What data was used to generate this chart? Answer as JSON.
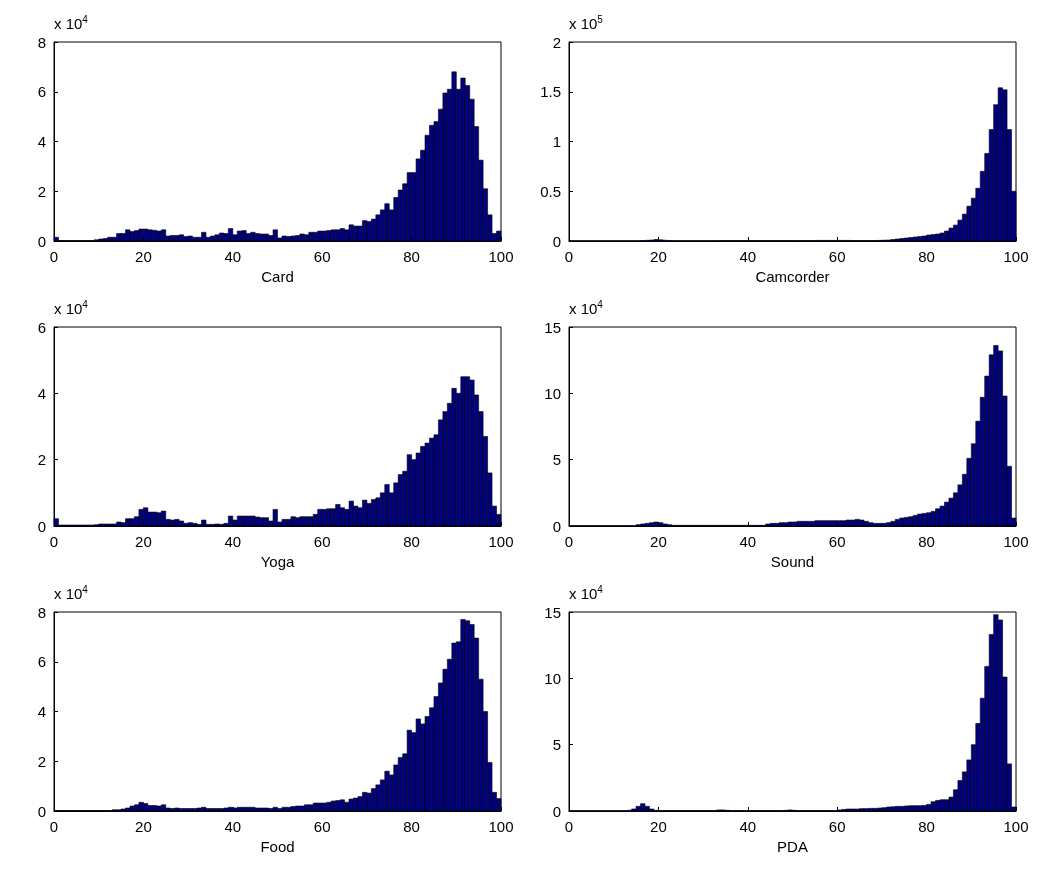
{
  "chart_data": [
    {
      "type": "histogram",
      "xlabel": "Card",
      "annotations": [
        "x 10$^{4}$"
      ],
      "color": "#000080",
      "xlim": [
        0,
        100
      ],
      "xticks": [
        0,
        20,
        40,
        60,
        80,
        100
      ],
      "ylim": [
        0,
        8
      ],
      "yticks": [
        0,
        2,
        4,
        6,
        8
      ],
      "grid": false,
      "bins": [
        0,
        1,
        2,
        3,
        4,
        5,
        6,
        7,
        8,
        9,
        10,
        11,
        12,
        13,
        14,
        15,
        16,
        17,
        18,
        19,
        20,
        21,
        22,
        23,
        24,
        25,
        26,
        27,
        28,
        29,
        30,
        31,
        32,
        33,
        34,
        35,
        36,
        37,
        38,
        39,
        40,
        41,
        42,
        43,
        44,
        45,
        46,
        47,
        48,
        49,
        50,
        51,
        52,
        53,
        54,
        55,
        56,
        57,
        58,
        59,
        60,
        61,
        62,
        63,
        64,
        65,
        66,
        67,
        68,
        69,
        70,
        71,
        72,
        73,
        74,
        75,
        76,
        77,
        78,
        79,
        80,
        81,
        82,
        83,
        84,
        85,
        86,
        87,
        88,
        89,
        90,
        91,
        92,
        93,
        94,
        95,
        96,
        97,
        98,
        99,
        100
      ],
      "values": [
        0.15,
        0.02,
        0.02,
        0.02,
        0.02,
        0.02,
        0.02,
        0.02,
        0.02,
        0.05,
        0.08,
        0.1,
        0.15,
        0.15,
        0.3,
        0.3,
        0.45,
        0.38,
        0.42,
        0.48,
        0.48,
        0.45,
        0.43,
        0.4,
        0.45,
        0.2,
        0.22,
        0.22,
        0.25,
        0.18,
        0.2,
        0.15,
        0.15,
        0.35,
        0.15,
        0.2,
        0.25,
        0.32,
        0.3,
        0.5,
        0.25,
        0.4,
        0.42,
        0.3,
        0.35,
        0.3,
        0.28,
        0.28,
        0.22,
        0.45,
        0.12,
        0.2,
        0.18,
        0.2,
        0.22,
        0.28,
        0.25,
        0.35,
        0.35,
        0.4,
        0.4,
        0.42,
        0.45,
        0.45,
        0.5,
        0.45,
        0.65,
        0.6,
        0.6,
        0.82,
        0.78,
        0.88,
        1.05,
        1.25,
        1.5,
        1.25,
        1.75,
        2.05,
        2.3,
        2.75,
        2.75,
        3.3,
        3.65,
        4.25,
        4.65,
        4.8,
        5.3,
        5.95,
        6.1,
        6.8,
        6.1,
        6.55,
        6.25,
        5.7,
        4.6,
        3.25,
        2.1,
        1.05,
        0.3,
        0.4
      ]
    },
    {
      "type": "histogram",
      "xlabel": "Camcorder",
      "annotations": [
        "x 10$^{5}$"
      ],
      "color": "#000080",
      "xlim": [
        0,
        100
      ],
      "xticks": [
        0,
        20,
        40,
        60,
        80,
        100
      ],
      "ylim": [
        0,
        2
      ],
      "yticks": [
        0,
        0.5,
        1,
        1.5,
        2
      ],
      "grid": false,
      "bins": [
        0,
        1,
        2,
        3,
        4,
        5,
        6,
        7,
        8,
        9,
        10,
        11,
        12,
        13,
        14,
        15,
        16,
        17,
        18,
        19,
        20,
        21,
        22,
        23,
        24,
        25,
        26,
        27,
        28,
        29,
        30,
        31,
        32,
        33,
        34,
        35,
        36,
        37,
        38,
        39,
        40,
        41,
        42,
        43,
        44,
        45,
        46,
        47,
        48,
        49,
        50,
        51,
        52,
        53,
        54,
        55,
        56,
        57,
        58,
        59,
        60,
        61,
        62,
        63,
        64,
        65,
        66,
        67,
        68,
        69,
        70,
        71,
        72,
        73,
        74,
        75,
        76,
        77,
        78,
        79,
        80,
        81,
        82,
        83,
        84,
        85,
        86,
        87,
        88,
        89,
        90,
        91,
        92,
        93,
        94,
        95,
        96,
        97,
        98,
        99,
        100
      ],
      "values": [
        0.002,
        0.002,
        0.002,
        0.002,
        0.002,
        0.002,
        0.002,
        0.002,
        0.002,
        0.002,
        0.002,
        0.002,
        0.002,
        0.002,
        0.002,
        0.002,
        0.005,
        0.007,
        0.01,
        0.015,
        0.012,
        0.008,
        0.005,
        0.003,
        0.003,
        0.003,
        0.003,
        0.003,
        0.003,
        0.003,
        0.003,
        0.003,
        0.003,
        0.004,
        0.004,
        0.005,
        0.005,
        0.005,
        0.005,
        0.005,
        0.005,
        0.005,
        0.005,
        0.005,
        0.005,
        0.005,
        0.005,
        0.005,
        0.005,
        0.005,
        0.004,
        0.004,
        0.004,
        0.005,
        0.005,
        0.006,
        0.006,
        0.006,
        0.006,
        0.006,
        0.006,
        0.006,
        0.006,
        0.005,
        0.005,
        0.005,
        0.005,
        0.005,
        0.005,
        0.006,
        0.008,
        0.01,
        0.015,
        0.02,
        0.025,
        0.03,
        0.035,
        0.04,
        0.045,
        0.05,
        0.06,
        0.065,
        0.07,
        0.08,
        0.1,
        0.13,
        0.16,
        0.21,
        0.27,
        0.35,
        0.43,
        0.53,
        0.7,
        0.88,
        1.12,
        1.37,
        1.54,
        1.52,
        1.12,
        0.5
      ]
    },
    {
      "type": "histogram",
      "xlabel": "Yoga",
      "annotations": [
        "x 10$^{4}$"
      ],
      "color": "#000080",
      "xlim": [
        0,
        100
      ],
      "xticks": [
        0,
        20,
        40,
        60,
        80,
        100
      ],
      "ylim": [
        0,
        6
      ],
      "yticks": [
        0,
        2,
        4,
        6
      ],
      "grid": false,
      "bins": [
        0,
        1,
        2,
        3,
        4,
        5,
        6,
        7,
        8,
        9,
        10,
        11,
        12,
        13,
        14,
        15,
        16,
        17,
        18,
        19,
        20,
        21,
        22,
        23,
        24,
        25,
        26,
        27,
        28,
        29,
        30,
        31,
        32,
        33,
        34,
        35,
        36,
        37,
        38,
        39,
        40,
        41,
        42,
        43,
        44,
        45,
        46,
        47,
        48,
        49,
        50,
        51,
        52,
        53,
        54,
        55,
        56,
        57,
        58,
        59,
        60,
        61,
        62,
        63,
        64,
        65,
        66,
        67,
        68,
        69,
        70,
        71,
        72,
        73,
        74,
        75,
        76,
        77,
        78,
        79,
        80,
        81,
        82,
        83,
        84,
        85,
        86,
        87,
        88,
        89,
        90,
        91,
        92,
        93,
        94,
        95,
        96,
        97,
        98,
        99,
        100
      ],
      "values": [
        0.22,
        0.03,
        0.03,
        0.03,
        0.03,
        0.03,
        0.03,
        0.03,
        0.03,
        0.04,
        0.06,
        0.06,
        0.06,
        0.06,
        0.12,
        0.1,
        0.22,
        0.22,
        0.28,
        0.5,
        0.55,
        0.42,
        0.42,
        0.4,
        0.45,
        0.2,
        0.18,
        0.2,
        0.15,
        0.08,
        0.1,
        0.08,
        0.05,
        0.18,
        0.05,
        0.05,
        0.06,
        0.05,
        0.08,
        0.3,
        0.18,
        0.3,
        0.3,
        0.3,
        0.3,
        0.27,
        0.25,
        0.25,
        0.15,
        0.5,
        0.12,
        0.2,
        0.2,
        0.28,
        0.25,
        0.28,
        0.28,
        0.28,
        0.35,
        0.5,
        0.5,
        0.52,
        0.52,
        0.65,
        0.55,
        0.5,
        0.75,
        0.6,
        0.55,
        0.78,
        0.68,
        0.8,
        0.85,
        1.0,
        1.25,
        1.0,
        1.3,
        1.55,
        1.65,
        2.15,
        2.0,
        2.2,
        2.4,
        2.5,
        2.65,
        2.75,
        3.2,
        3.45,
        3.7,
        4.15,
        4.0,
        4.5,
        4.5,
        4.4,
        3.95,
        3.45,
        2.7,
        1.6,
        0.6,
        0.35
      ]
    },
    {
      "type": "histogram",
      "xlabel": "Sound",
      "annotations": [
        "x 10$^{4}$"
      ],
      "color": "#000080",
      "xlim": [
        0,
        100
      ],
      "xticks": [
        0,
        20,
        40,
        60,
        80,
        100
      ],
      "ylim": [
        0,
        15
      ],
      "yticks": [
        0,
        5,
        10,
        15
      ],
      "grid": false,
      "bins": [
        0,
        1,
        2,
        3,
        4,
        5,
        6,
        7,
        8,
        9,
        10,
        11,
        12,
        13,
        14,
        15,
        16,
        17,
        18,
        19,
        20,
        21,
        22,
        23,
        24,
        25,
        26,
        27,
        28,
        29,
        30,
        31,
        32,
        33,
        34,
        35,
        36,
        37,
        38,
        39,
        40,
        41,
        42,
        43,
        44,
        45,
        46,
        47,
        48,
        49,
        50,
        51,
        52,
        53,
        54,
        55,
        56,
        57,
        58,
        59,
        60,
        61,
        62,
        63,
        64,
        65,
        66,
        67,
        68,
        69,
        70,
        71,
        72,
        73,
        74,
        75,
        76,
        77,
        78,
        79,
        80,
        81,
        82,
        83,
        84,
        85,
        86,
        87,
        88,
        89,
        90,
        91,
        92,
        93,
        94,
        95,
        96,
        97,
        98,
        99,
        100
      ],
      "values": [
        0.02,
        0.02,
        0.02,
        0.02,
        0.02,
        0.02,
        0.02,
        0.02,
        0.02,
        0.02,
        0.02,
        0.02,
        0.02,
        0.02,
        0.02,
        0.1,
        0.15,
        0.2,
        0.25,
        0.3,
        0.25,
        0.15,
        0.1,
        0.05,
        0.05,
        0.05,
        0.05,
        0.05,
        0.05,
        0.05,
        0.05,
        0.05,
        0.05,
        0.05,
        0.05,
        0.05,
        0.05,
        0.05,
        0.05,
        0.05,
        0.05,
        0.05,
        0.05,
        0.05,
        0.15,
        0.2,
        0.2,
        0.25,
        0.25,
        0.3,
        0.3,
        0.35,
        0.35,
        0.35,
        0.35,
        0.4,
        0.4,
        0.4,
        0.4,
        0.4,
        0.4,
        0.4,
        0.45,
        0.45,
        0.5,
        0.45,
        0.35,
        0.25,
        0.2,
        0.2,
        0.2,
        0.25,
        0.35,
        0.5,
        0.6,
        0.65,
        0.7,
        0.8,
        0.9,
        0.95,
        1.0,
        1.1,
        1.3,
        1.5,
        1.8,
        2.1,
        2.5,
        3.1,
        3.9,
        5.1,
        6.2,
        7.9,
        9.7,
        11.3,
        12.9,
        13.6,
        13.2,
        9.8,
        4.5,
        0.6
      ]
    },
    {
      "type": "histogram",
      "xlabel": "Food",
      "annotations": [
        "x 10$^{4}$"
      ],
      "color": "#000080",
      "xlim": [
        0,
        100
      ],
      "xticks": [
        0,
        20,
        40,
        60,
        80,
        100
      ],
      "ylim": [
        0,
        8
      ],
      "yticks": [
        0,
        2,
        4,
        6,
        8
      ],
      "grid": false,
      "bins": [
        0,
        1,
        2,
        3,
        4,
        5,
        6,
        7,
        8,
        9,
        10,
        11,
        12,
        13,
        14,
        15,
        16,
        17,
        18,
        19,
        20,
        21,
        22,
        23,
        24,
        25,
        26,
        27,
        28,
        29,
        30,
        31,
        32,
        33,
        34,
        35,
        36,
        37,
        38,
        39,
        40,
        41,
        42,
        43,
        44,
        45,
        46,
        47,
        48,
        49,
        50,
        51,
        52,
        53,
        54,
        55,
        56,
        57,
        58,
        59,
        60,
        61,
        62,
        63,
        64,
        65,
        66,
        67,
        68,
        69,
        70,
        71,
        72,
        73,
        74,
        75,
        76,
        77,
        78,
        79,
        80,
        81,
        82,
        83,
        84,
        85,
        86,
        87,
        88,
        89,
        90,
        91,
        92,
        93,
        94,
        95,
        96,
        97,
        98,
        99,
        100
      ],
      "values": [
        0.02,
        0.02,
        0.02,
        0.02,
        0.02,
        0.02,
        0.02,
        0.02,
        0.02,
        0.02,
        0.02,
        0.02,
        0.02,
        0.05,
        0.05,
        0.08,
        0.12,
        0.2,
        0.25,
        0.35,
        0.3,
        0.22,
        0.22,
        0.2,
        0.25,
        0.12,
        0.1,
        0.12,
        0.1,
        0.1,
        0.1,
        0.1,
        0.12,
        0.15,
        0.1,
        0.1,
        0.1,
        0.1,
        0.12,
        0.15,
        0.12,
        0.15,
        0.15,
        0.15,
        0.15,
        0.12,
        0.12,
        0.12,
        0.1,
        0.15,
        0.1,
        0.15,
        0.15,
        0.18,
        0.2,
        0.2,
        0.25,
        0.25,
        0.32,
        0.32,
        0.32,
        0.35,
        0.4,
        0.42,
        0.45,
        0.35,
        0.48,
        0.52,
        0.58,
        0.75,
        0.72,
        0.9,
        1.05,
        1.25,
        1.6,
        1.45,
        1.85,
        2.15,
        2.3,
        3.25,
        3.15,
        3.7,
        3.5,
        3.8,
        4.15,
        4.6,
        5.15,
        5.7,
        6.1,
        6.75,
        6.8,
        7.7,
        7.65,
        7.5,
        6.95,
        5.3,
        4.0,
        1.95,
        0.75,
        0.5
      ]
    },
    {
      "type": "histogram",
      "xlabel": "PDA",
      "annotations": [
        "x 10$^{4}$"
      ],
      "color": "#000080",
      "xlim": [
        0,
        100
      ],
      "xticks": [
        0,
        20,
        40,
        60,
        80,
        100
      ],
      "ylim": [
        0,
        15
      ],
      "yticks": [
        0,
        5,
        10,
        15
      ],
      "grid": false,
      "bins": [
        0,
        1,
        2,
        3,
        4,
        5,
        6,
        7,
        8,
        9,
        10,
        11,
        12,
        13,
        14,
        15,
        16,
        17,
        18,
        19,
        20,
        21,
        22,
        23,
        24,
        25,
        26,
        27,
        28,
        29,
        30,
        31,
        32,
        33,
        34,
        35,
        36,
        37,
        38,
        39,
        40,
        41,
        42,
        43,
        44,
        45,
        46,
        47,
        48,
        49,
        50,
        51,
        52,
        53,
        54,
        55,
        56,
        57,
        58,
        59,
        60,
        61,
        62,
        63,
        64,
        65,
        66,
        67,
        68,
        69,
        70,
        71,
        72,
        73,
        74,
        75,
        76,
        77,
        78,
        79,
        80,
        81,
        82,
        83,
        84,
        85,
        86,
        87,
        88,
        89,
        90,
        91,
        92,
        93,
        94,
        95,
        96,
        97,
        98,
        99,
        100
      ],
      "values": [
        0.02,
        0.02,
        0.02,
        0.02,
        0.02,
        0.02,
        0.02,
        0.02,
        0.02,
        0.02,
        0.02,
        0.02,
        0.02,
        0.05,
        0.15,
        0.35,
        0.55,
        0.35,
        0.15,
        0.05,
        0.03,
        0.03,
        0.03,
        0.03,
        0.03,
        0.03,
        0.03,
        0.03,
        0.03,
        0.03,
        0.03,
        0.03,
        0.03,
        0.08,
        0.08,
        0.05,
        0.03,
        0.03,
        0.03,
        0.03,
        0.03,
        0.03,
        0.03,
        0.03,
        0.03,
        0.03,
        0.03,
        0.03,
        0.05,
        0.08,
        0.05,
        0.03,
        0.03,
        0.03,
        0.03,
        0.03,
        0.03,
        0.03,
        0.03,
        0.03,
        0.08,
        0.12,
        0.15,
        0.15,
        0.15,
        0.18,
        0.18,
        0.2,
        0.2,
        0.22,
        0.25,
        0.3,
        0.32,
        0.35,
        0.35,
        0.38,
        0.4,
        0.4,
        0.4,
        0.42,
        0.5,
        0.7,
        0.8,
        0.85,
        0.85,
        1.05,
        1.6,
        2.3,
        2.95,
        3.85,
        5.0,
        6.6,
        8.5,
        10.9,
        13.3,
        14.8,
        14.4,
        10.1,
        3.55,
        0.3
      ]
    }
  ]
}
